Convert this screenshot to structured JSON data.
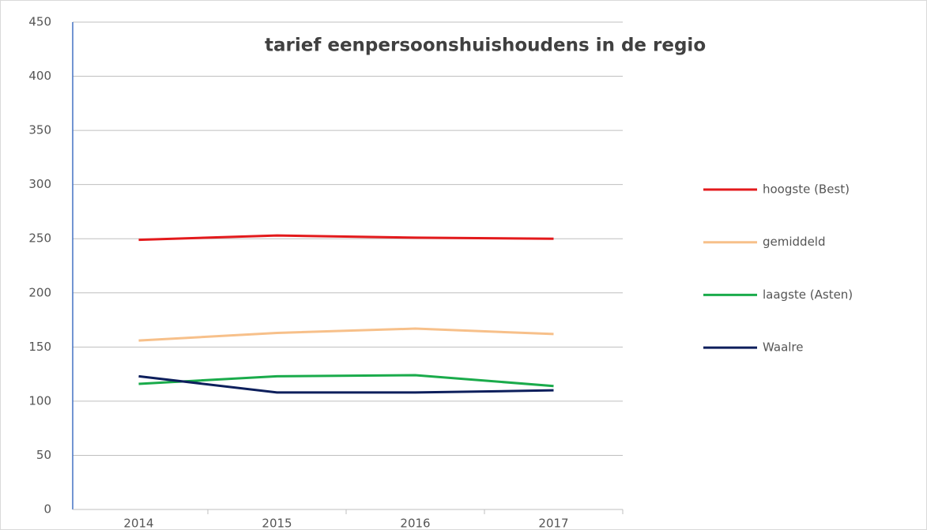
{
  "chart_data": {
    "type": "line",
    "title": "tarief eenpersoonshuishoudens in de regio",
    "categories": [
      "2014",
      "2015",
      "2016",
      "2017"
    ],
    "series": [
      {
        "name": "hoogste (Best)",
        "color": "#e31a1c",
        "values": [
          249,
          253,
          251,
          250
        ]
      },
      {
        "name": "gemiddeld",
        "color": "#f7c08a",
        "values": [
          156,
          163,
          167,
          162
        ]
      },
      {
        "name": "laagste (Asten)",
        "color": "#1aab4b",
        "values": [
          116,
          123,
          124,
          114
        ]
      },
      {
        "name": "Waalre",
        "color": "#0d1f5c",
        "values": [
          123,
          108,
          108,
          110
        ]
      }
    ],
    "ylim": [
      0,
      450
    ],
    "yticks": [
      0,
      50,
      100,
      150,
      200,
      250,
      300,
      350,
      400,
      450
    ],
    "grid": true,
    "legend": "right"
  }
}
